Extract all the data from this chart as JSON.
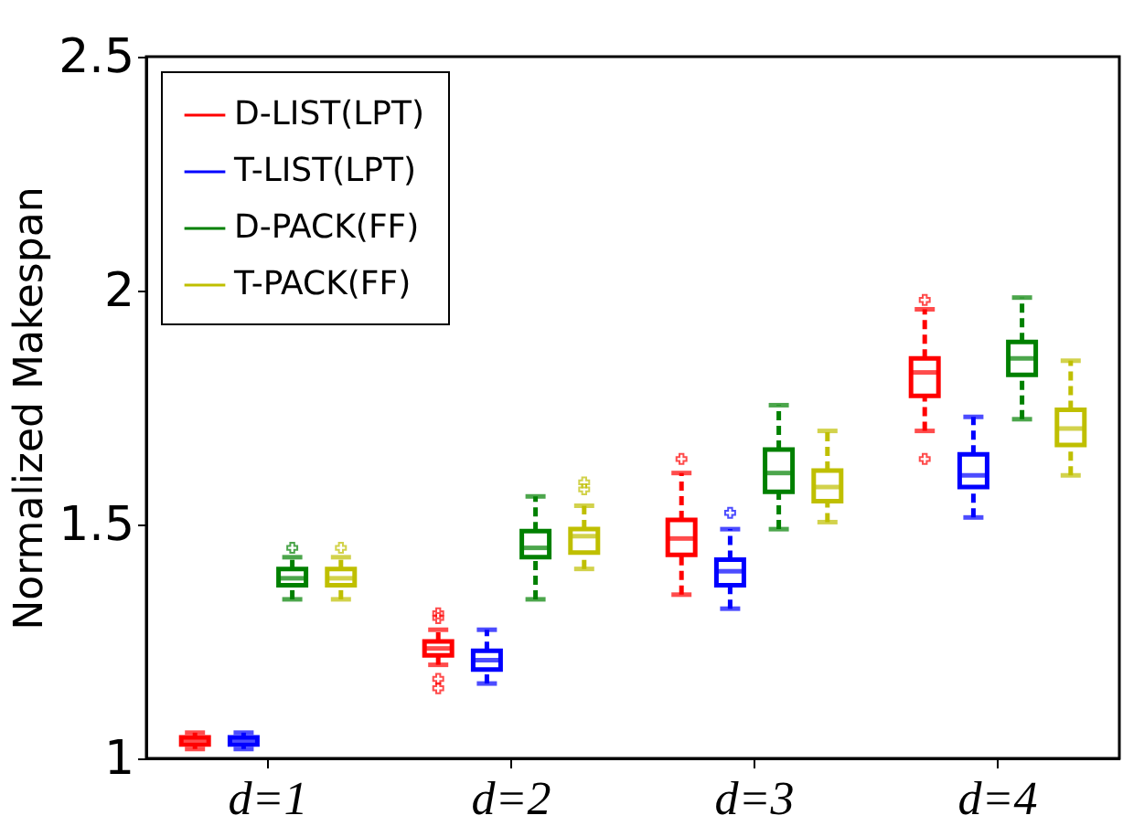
{
  "chart_data": {
    "type": "box",
    "ylabel": "Normalized Makespan",
    "categories": [
      "d=1",
      "d=2",
      "d=3",
      "d=4"
    ],
    "ylim": [
      1,
      2.5
    ],
    "yticks": [
      1,
      1.5,
      2,
      2.5
    ],
    "grid": false,
    "legend": "top left",
    "series": [
      {
        "name": "D-LIST(LPT)",
        "color": "#ff0000",
        "boxes": [
          {
            "low": 1.02,
            "q1": 1.03,
            "median": 1.04,
            "q3": 1.045,
            "high": 1.055
          },
          {
            "low": 1.2,
            "q1": 1.22,
            "median": 1.235,
            "q3": 1.25,
            "high": 1.275,
            "outliers": [
              1.3,
              1.31,
              1.17,
              1.15
            ]
          },
          {
            "low": 1.35,
            "q1": 1.435,
            "median": 1.47,
            "q3": 1.51,
            "high": 1.61,
            "outliers": [
              1.64
            ]
          },
          {
            "low": 1.7,
            "q1": 1.775,
            "median": 1.825,
            "q3": 1.855,
            "high": 1.96,
            "outliers": [
              1.98,
              1.64
            ]
          }
        ]
      },
      {
        "name": "T-LIST(LPT)",
        "color": "#0000ff",
        "boxes": [
          {
            "low": 1.02,
            "q1": 1.03,
            "median": 1.04,
            "q3": 1.045,
            "high": 1.055
          },
          {
            "low": 1.16,
            "q1": 1.19,
            "median": 1.21,
            "q3": 1.23,
            "high": 1.275
          },
          {
            "low": 1.32,
            "q1": 1.37,
            "median": 1.4,
            "q3": 1.425,
            "high": 1.49,
            "outliers": [
              1.525
            ]
          },
          {
            "low": 1.515,
            "q1": 1.58,
            "median": 1.605,
            "q3": 1.65,
            "high": 1.73
          }
        ]
      },
      {
        "name": "D-PACK(FF)",
        "color": "#008000",
        "boxes": [
          {
            "low": 1.34,
            "q1": 1.37,
            "median": 1.385,
            "q3": 1.405,
            "high": 1.43,
            "outliers": [
              1.45
            ]
          },
          {
            "low": 1.34,
            "q1": 1.43,
            "median": 1.45,
            "q3": 1.486,
            "high": 1.56
          },
          {
            "low": 1.49,
            "q1": 1.57,
            "median": 1.61,
            "q3": 1.66,
            "high": 1.755
          },
          {
            "low": 1.725,
            "q1": 1.82,
            "median": 1.855,
            "q3": 1.89,
            "high": 1.985
          }
        ]
      },
      {
        "name": "T-PACK(FF)",
        "color": "#bfbf00",
        "boxes": [
          {
            "low": 1.34,
            "q1": 1.37,
            "median": 1.385,
            "q3": 1.405,
            "high": 1.43,
            "outliers": [
              1.45
            ]
          },
          {
            "low": 1.405,
            "q1": 1.44,
            "median": 1.475,
            "q3": 1.49,
            "high": 1.54,
            "outliers": [
              1.575,
              1.59
            ]
          },
          {
            "low": 1.505,
            "q1": 1.55,
            "median": 1.58,
            "q3": 1.615,
            "high": 1.7
          },
          {
            "low": 1.605,
            "q1": 1.67,
            "median": 1.705,
            "q3": 1.745,
            "high": 1.85
          }
        ]
      }
    ]
  }
}
